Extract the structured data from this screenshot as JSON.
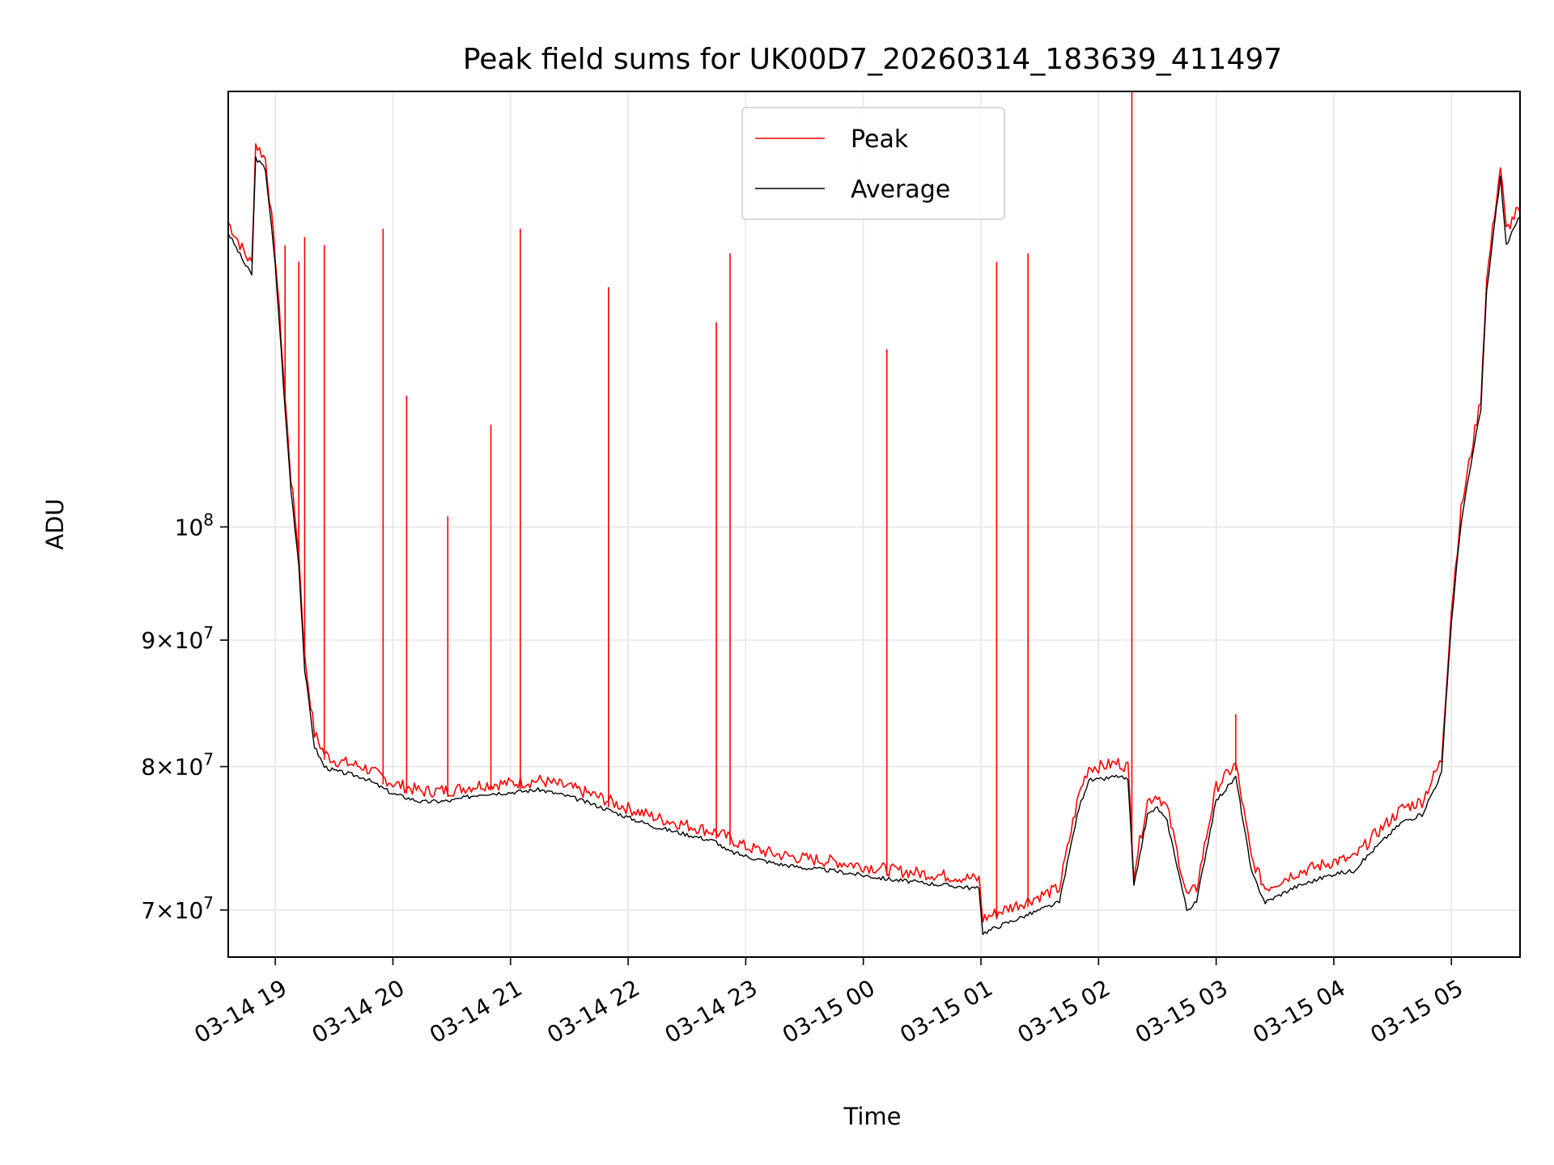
{
  "chart_data": {
    "type": "line",
    "title": "Peak field sums for UK00D7_20260314_183639_411497",
    "xlabel": "Time",
    "ylabel": "ADU",
    "yscale": "log",
    "grid": true,
    "legend_position": "top-center",
    "xlim": [
      "2026-03-14 18:36",
      "2026-03-15 05:35"
    ],
    "ylim": [
      67000000,
      150000000
    ],
    "x_ticks": [
      "03-14 19",
      "03-14 20",
      "03-14 21",
      "03-14 22",
      "03-14 23",
      "03-15 00",
      "03-15 01",
      "03-15 02",
      "03-15 03",
      "03-15 04",
      "03-15 05"
    ],
    "y_ticks": [
      {
        "value": 70000000,
        "mantissa": "7",
        "exp": "7"
      },
      {
        "value": 80000000,
        "mantissa": "8",
        "exp": "7"
      },
      {
        "value": 90000000,
        "mantissa": "9",
        "exp": "7"
      },
      {
        "value": 100000000,
        "mantissa": "",
        "exp": "8"
      }
    ],
    "series": [
      {
        "name": "Peak",
        "color": "#ff0000",
        "x": [
          "2026-03-14 18:36",
          "2026-03-14 18:45",
          "2026-03-14 18:48",
          "2026-03-14 18:50",
          "2026-03-14 18:55",
          "2026-03-14 19:00",
          "2026-03-14 19:05",
          "2026-03-14 19:08",
          "2026-03-14 19:12",
          "2026-03-14 19:15",
          "2026-03-14 19:20",
          "2026-03-14 19:25",
          "2026-03-14 19:30",
          "2026-03-14 19:45",
          "2026-03-14 20:00",
          "2026-03-14 20:15",
          "2026-03-14 20:30",
          "2026-03-14 20:45",
          "2026-03-14 21:00",
          "2026-03-14 21:15",
          "2026-03-14 21:30",
          "2026-03-14 21:45",
          "2026-03-14 22:00",
          "2026-03-14 22:15",
          "2026-03-14 22:30",
          "2026-03-14 22:45",
          "2026-03-14 22:50",
          "2026-03-14 23:00",
          "2026-03-14 23:15",
          "2026-03-14 23:30",
          "2026-03-14 23:45",
          "2026-03-15 00:00",
          "2026-03-15 00:15",
          "2026-03-15 00:30",
          "2026-03-15 00:45",
          "2026-03-15 00:59",
          "2026-03-15 01:01",
          "2026-03-15 01:10",
          "2026-03-15 01:20",
          "2026-03-15 01:40",
          "2026-03-15 01:50",
          "2026-03-15 01:55",
          "2026-03-15 02:00",
          "2026-03-15 02:10",
          "2026-03-15 02:15",
          "2026-03-15 02:18",
          "2026-03-15 02:25",
          "2026-03-15 02:30",
          "2026-03-15 02:35",
          "2026-03-15 02:45",
          "2026-03-15 02:50",
          "2026-03-15 03:00",
          "2026-03-15 03:10",
          "2026-03-15 03:18",
          "2026-03-15 03:25",
          "2026-03-15 03:40",
          "2026-03-15 04:00",
          "2026-03-15 04:10",
          "2026-03-15 04:20",
          "2026-03-15 04:35",
          "2026-03-15 04:45",
          "2026-03-15 04:55",
          "2026-03-15 05:00",
          "2026-03-15 05:05",
          "2026-03-15 05:15",
          "2026-03-15 05:18",
          "2026-03-15 05:25",
          "2026-03-15 05:28",
          "2026-03-15 05:35"
        ],
        "y": [
          132000000,
          128000000,
          127000000,
          142000000,
          140000000,
          128000000,
          112000000,
          104000000,
          97000000,
          88000000,
          82000000,
          80500000,
          80000000,
          79500000,
          78300000,
          77700000,
          77800000,
          78200000,
          78300000,
          78500000,
          78000000,
          77300000,
          76500000,
          75800000,
          75300000,
          74800000,
          74500000,
          73800000,
          73300000,
          73000000,
          72800000,
          72500000,
          72200000,
          72000000,
          71800000,
          71600000,
          69000000,
          69500000,
          70000000,
          71000000,
          77500000,
          79500000,
          79500000,
          79800000,
          79500000,
          72000000,
          77000000,
          77500000,
          76500000,
          70500000,
          71000000,
          78000000,
          79700000,
          73000000,
          71000000,
          72000000,
          72800000,
          73000000,
          74500000,
          76500000,
          77000000,
          80000000,
          92000000,
          101000000,
          112000000,
          125000000,
          139000000,
          131000000,
          134000000
        ],
        "spikes": [
          {
            "x": "2026-03-14 19:05",
            "y": 130000000
          },
          {
            "x": "2026-03-14 19:12",
            "y": 128000000
          },
          {
            "x": "2026-03-14 19:15",
            "y": 131000000
          },
          {
            "x": "2026-03-14 19:25",
            "y": 130000000
          },
          {
            "x": "2026-03-14 19:55",
            "y": 132000000
          },
          {
            "x": "2026-03-14 20:07",
            "y": 113000000
          },
          {
            "x": "2026-03-14 20:28",
            "y": 101000000
          },
          {
            "x": "2026-03-14 20:50",
            "y": 110000000
          },
          {
            "x": "2026-03-14 21:05",
            "y": 132000000
          },
          {
            "x": "2026-03-14 21:50",
            "y": 125000000
          },
          {
            "x": "2026-03-14 22:45",
            "y": 121000000
          },
          {
            "x": "2026-03-14 22:52",
            "y": 129000000
          },
          {
            "x": "2026-03-15 00:12",
            "y": 118000000
          },
          {
            "x": "2026-03-15 01:08",
            "y": 128000000
          },
          {
            "x": "2026-03-15 01:24",
            "y": 129000000
          },
          {
            "x": "2026-03-15 02:17",
            "y": 150000000
          },
          {
            "x": "2026-03-15 03:10",
            "y": 84000000
          }
        ]
      },
      {
        "name": "Average",
        "color": "#000000",
        "x": [
          "2026-03-14 18:36",
          "2026-03-14 18:45",
          "2026-03-14 18:48",
          "2026-03-14 18:50",
          "2026-03-14 18:55",
          "2026-03-14 19:00",
          "2026-03-14 19:05",
          "2026-03-14 19:08",
          "2026-03-14 19:12",
          "2026-03-14 19:15",
          "2026-03-14 19:20",
          "2026-03-14 19:25",
          "2026-03-14 19:30",
          "2026-03-14 19:45",
          "2026-03-14 20:00",
          "2026-03-14 20:15",
          "2026-03-14 20:30",
          "2026-03-14 20:45",
          "2026-03-14 21:00",
          "2026-03-14 21:15",
          "2026-03-14 21:30",
          "2026-03-14 21:45",
          "2026-03-14 22:00",
          "2026-03-14 22:15",
          "2026-03-14 22:30",
          "2026-03-14 22:45",
          "2026-03-14 22:50",
          "2026-03-14 23:00",
          "2026-03-14 23:15",
          "2026-03-14 23:30",
          "2026-03-14 23:45",
          "2026-03-15 00:00",
          "2026-03-15 00:15",
          "2026-03-15 00:30",
          "2026-03-15 00:45",
          "2026-03-15 00:59",
          "2026-03-15 01:01",
          "2026-03-15 01:10",
          "2026-03-15 01:20",
          "2026-03-15 01:40",
          "2026-03-15 01:50",
          "2026-03-15 01:55",
          "2026-03-15 02:00",
          "2026-03-15 02:10",
          "2026-03-15 02:15",
          "2026-03-15 02:18",
          "2026-03-15 02:25",
          "2026-03-15 02:30",
          "2026-03-15 02:35",
          "2026-03-15 02:45",
          "2026-03-15 02:50",
          "2026-03-15 03:00",
          "2026-03-15 03:10",
          "2026-03-15 03:18",
          "2026-03-15 03:25",
          "2026-03-15 03:40",
          "2026-03-15 04:00",
          "2026-03-15 04:10",
          "2026-03-15 04:20",
          "2026-03-15 04:35",
          "2026-03-15 04:45",
          "2026-03-15 04:55",
          "2026-03-15 05:00",
          "2026-03-15 05:05",
          "2026-03-15 05:15",
          "2026-03-15 05:18",
          "2026-03-15 05:25",
          "2026-03-15 05:28",
          "2026-03-15 05:35"
        ],
        "y": [
          131500000,
          127500000,
          126500000,
          141000000,
          139500000,
          127500000,
          111500000,
          103500000,
          96500000,
          87500000,
          81500000,
          80000000,
          79700000,
          79200000,
          78000000,
          77400000,
          77500000,
          78000000,
          78100000,
          78300000,
          77800000,
          77100000,
          76300000,
          75600000,
          75100000,
          74600000,
          74000000,
          73600000,
          73100000,
          72800000,
          72600000,
          72300000,
          72000000,
          71800000,
          71600000,
          71400000,
          68500000,
          69000000,
          69500000,
          70500000,
          77000000,
          79000000,
          79000000,
          79300000,
          79000000,
          71500000,
          76500000,
          77000000,
          76000000,
          70000000,
          70500000,
          77500000,
          79200000,
          72500000,
          70500000,
          71500000,
          72400000,
          72600000,
          74000000,
          76000000,
          76500000,
          79500000,
          91500000,
          100500000,
          111500000,
          124500000,
          138500000,
          130000000,
          133500000
        ]
      }
    ],
    "legend": [
      {
        "label": "Peak",
        "color": "#ff0000"
      },
      {
        "label": "Average",
        "color": "#000000"
      }
    ]
  }
}
